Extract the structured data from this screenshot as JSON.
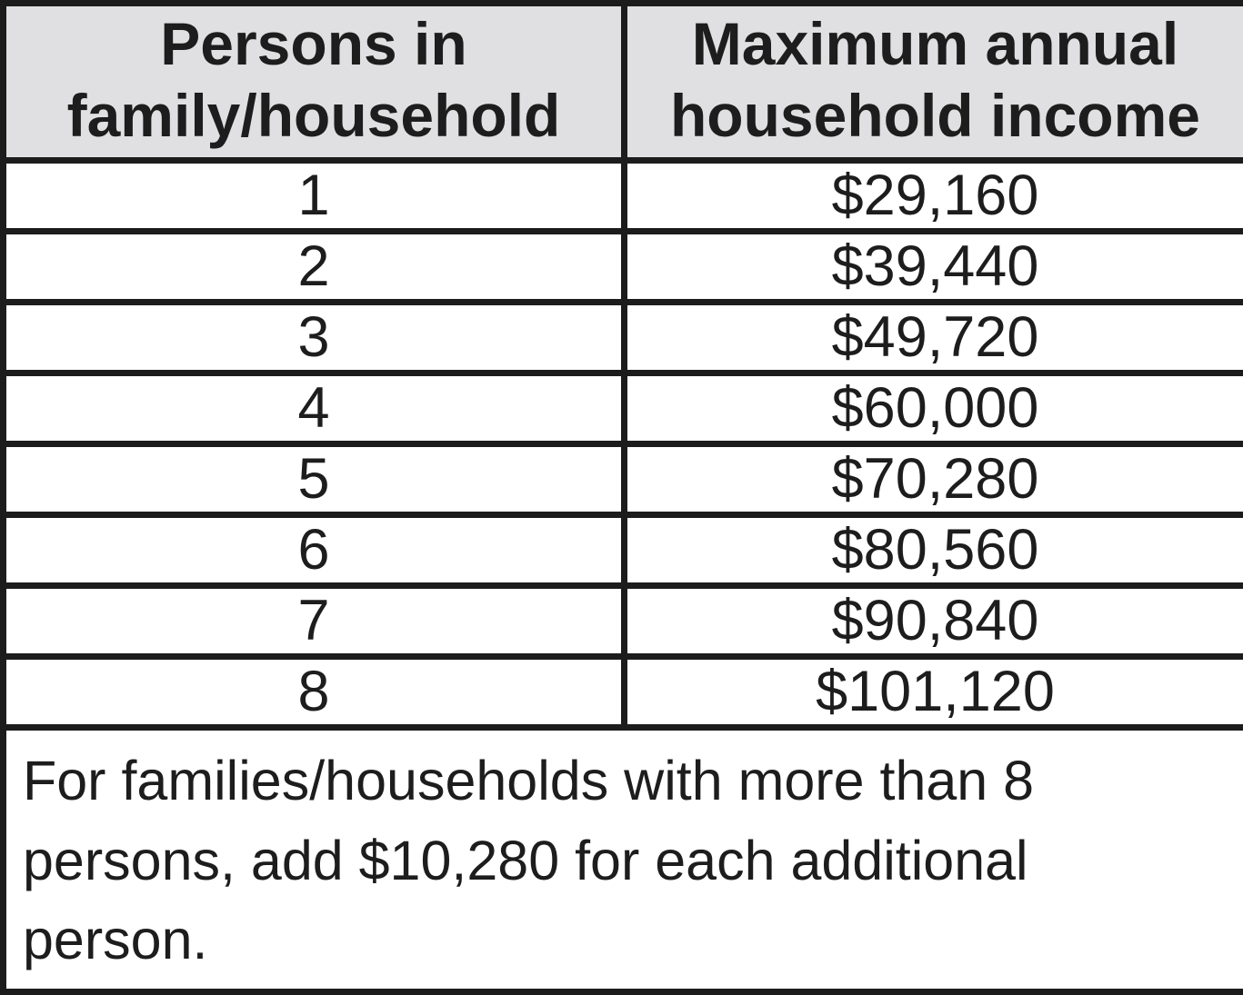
{
  "table": {
    "headers": [
      "Persons in family/household",
      "Maximum annual household income"
    ],
    "rows": [
      {
        "persons": "1",
        "income": "$29,160"
      },
      {
        "persons": "2",
        "income": "$39,440"
      },
      {
        "persons": "3",
        "income": "$49,720"
      },
      {
        "persons": "4",
        "income": "$60,000"
      },
      {
        "persons": "5",
        "income": "$70,280"
      },
      {
        "persons": "6",
        "income": "$80,560"
      },
      {
        "persons": "7",
        "income": "$90,840"
      },
      {
        "persons": "8",
        "income": "$101,120"
      }
    ],
    "footnote": "For families/households with more than 8 persons, add $10,280 for each additional person."
  },
  "colors": {
    "border_color": "#1c1c1c",
    "header_bg": "#e0e0e2",
    "text_color": "#1d1d1d",
    "row_bg": "#ffffff"
  }
}
